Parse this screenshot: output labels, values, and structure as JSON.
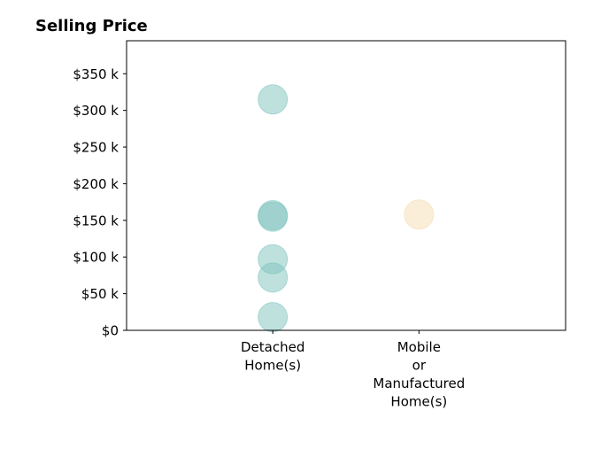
{
  "chart_data": {
    "type": "scatter",
    "title": "Selling Price",
    "xlabel": "",
    "ylabel": "",
    "categories": [
      [
        "Detached",
        "Home(s)"
      ],
      [
        "Mobile",
        "or",
        "Manufactured",
        "Home(s)"
      ]
    ],
    "y_ticks": [
      0,
      50,
      100,
      150,
      200,
      250,
      300,
      350
    ],
    "y_tick_labels": [
      "$0",
      "$50 k",
      "$100 k",
      "$150 k",
      "$200 k",
      "$250 k",
      "$300 k",
      "$350 k"
    ],
    "ylim": [
      0,
      395
    ],
    "grid": false,
    "colors": {
      "detached": "#7fc4bd",
      "mobile": "#f5deb3",
      "frame": "#000000"
    },
    "series": [
      {
        "category_index": 0,
        "values": [
          315,
          157,
          155,
          97,
          72,
          18
        ]
      },
      {
        "category_index": 1,
        "values": [
          158
        ]
      }
    ]
  }
}
